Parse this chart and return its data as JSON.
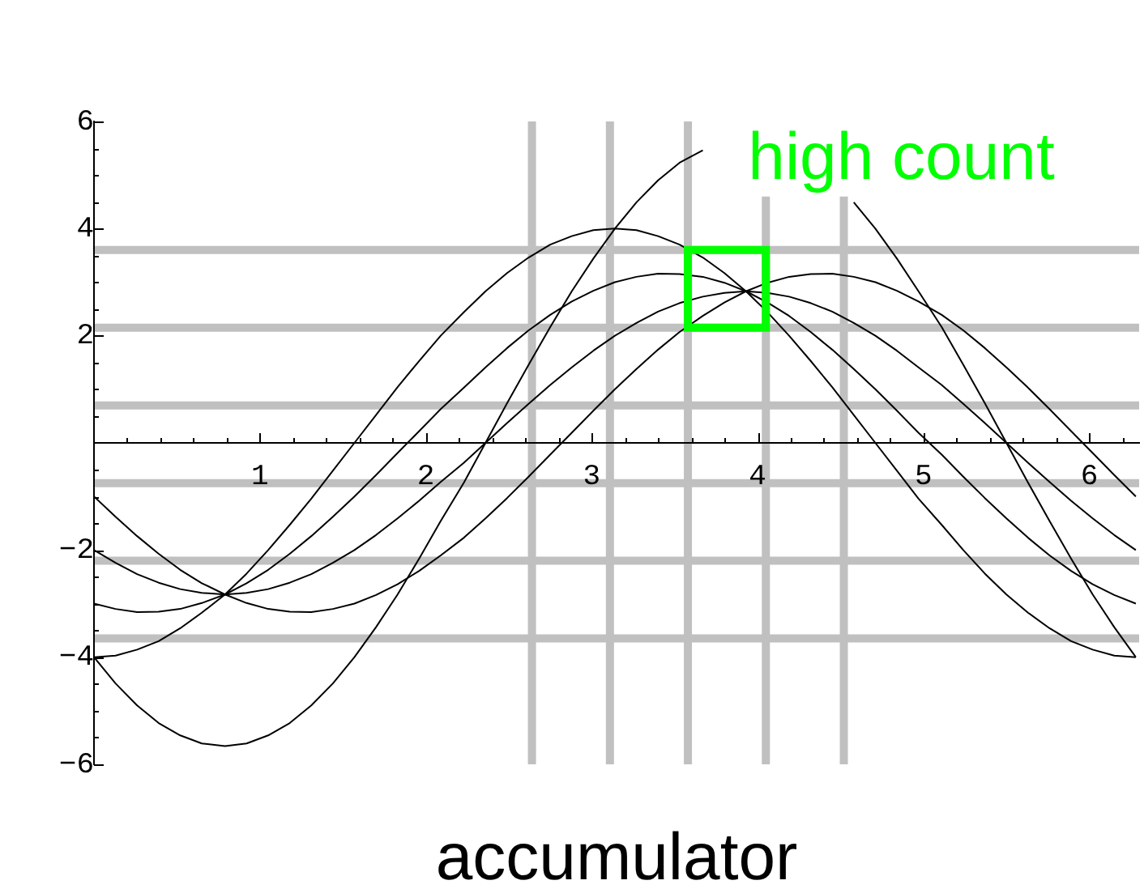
{
  "chart_data": {
    "type": "line",
    "x": [
      0,
      0.13,
      0.26,
      0.39,
      0.52,
      0.65,
      0.79,
      0.92,
      1.05,
      1.18,
      1.31,
      1.44,
      1.57,
      1.7,
      1.83,
      1.96,
      2.09,
      2.23,
      2.36,
      2.49,
      2.62,
      2.75,
      2.88,
      3.01,
      3.14,
      3.27,
      3.4,
      3.53,
      3.67,
      3.8,
      3.93,
      4.06,
      4.19,
      4.32,
      4.45,
      4.58,
      4.71,
      4.84,
      4.97,
      5.11,
      5.24,
      5.37,
      5.5,
      5.63,
      5.76,
      5.89,
      6.02,
      6.15,
      6.28
    ],
    "series": [
      {
        "color": "#000000",
        "values": [
          -1,
          -1.38,
          -1.74,
          -2.07,
          -2.37,
          -2.62,
          -2.83,
          -2.99,
          -3.1,
          -3.15,
          -3.16,
          -3.1,
          -3,
          -2.84,
          -2.64,
          -2.39,
          -2.1,
          -1.77,
          -1.41,
          -1.03,
          -0.63,
          -0.22,
          0.19,
          0.6,
          1,
          1.38,
          1.74,
          2.07,
          2.37,
          2.62,
          2.83,
          2.99,
          3.1,
          3.15,
          3.16,
          3.1,
          3,
          2.84,
          2.64,
          2.39,
          2.1,
          1.77,
          1.41,
          1.03,
          0.63,
          0.22,
          -0.19,
          -0.6,
          -1
        ]
      },
      {
        "color": "#000000",
        "values": [
          -2,
          -2.24,
          -2.45,
          -2.61,
          -2.73,
          -2.8,
          -2.83,
          -2.8,
          -2.73,
          -2.61,
          -2.45,
          -2.24,
          -2,
          -1.72,
          -1.41,
          -1.08,
          -0.73,
          -0.37,
          0,
          0.37,
          0.73,
          1.08,
          1.41,
          1.72,
          2,
          2.24,
          2.45,
          2.61,
          2.73,
          2.8,
          2.83,
          2.8,
          2.73,
          2.61,
          2.45,
          2.24,
          2,
          1.72,
          1.41,
          1.08,
          0.73,
          0.37,
          0,
          -0.37,
          -0.73,
          -1.08,
          -1.41,
          -1.72,
          -2
        ]
      },
      {
        "color": "#000000",
        "values": [
          -3,
          -3.1,
          -3.16,
          -3.15,
          -3.1,
          -2.99,
          -2.83,
          -2.62,
          -2.37,
          -2.07,
          -1.74,
          -1.38,
          -1,
          -0.6,
          -0.19,
          0.22,
          0.63,
          1.03,
          1.41,
          1.77,
          2.1,
          2.39,
          2.64,
          2.84,
          3,
          3.1,
          3.16,
          3.15,
          3.1,
          2.99,
          2.83,
          2.62,
          2.37,
          2.07,
          1.74,
          1.38,
          1,
          0.6,
          0.19,
          -0.22,
          -0.63,
          -1.03,
          -1.41,
          -1.77,
          -2.1,
          -2.39,
          -2.64,
          -2.84,
          -3
        ]
      },
      {
        "color": "#000000",
        "values": [
          -4,
          -3.97,
          -3.86,
          -3.7,
          -3.46,
          -3.17,
          -2.83,
          -2.44,
          -2,
          -1.53,
          -1.04,
          -0.52,
          0,
          0.52,
          1.04,
          1.53,
          2,
          2.44,
          2.83,
          3.17,
          3.46,
          3.7,
          3.86,
          3.97,
          4,
          3.97,
          3.86,
          3.7,
          3.46,
          3.17,
          2.83,
          2.44,
          2,
          1.53,
          1.04,
          0.52,
          0,
          -0.52,
          -1.04,
          -1.53,
          -2,
          -2.44,
          -2.83,
          -3.17,
          -3.46,
          -3.7,
          -3.86,
          -3.97,
          -4
        ]
      },
      {
        "color": "#000000",
        "values": [
          -4,
          -4.49,
          -4.9,
          -5.23,
          -5.46,
          -5.61,
          -5.66,
          -5.61,
          -5.46,
          -5.23,
          -4.9,
          -4.49,
          -4,
          -3.44,
          -2.83,
          -2.16,
          -1.46,
          -0.74,
          0,
          0.74,
          1.46,
          2.16,
          2.83,
          3.44,
          4,
          4.49,
          4.9,
          5.23,
          5.46,
          null,
          null,
          null,
          null,
          null,
          null,
          4.49,
          4,
          3.44,
          2.83,
          2.16,
          1.46,
          0.74,
          0,
          -0.74,
          -1.46,
          -2.16,
          -2.83,
          -3.44,
          -4
        ]
      }
    ],
    "xlim": [
      0,
      6.3
    ],
    "ylim": [
      -6,
      6
    ],
    "xticks": [
      {
        "value": 0.2,
        "label": null
      },
      {
        "value": 0.4,
        "label": null
      },
      {
        "value": 0.6,
        "label": null
      },
      {
        "value": 0.8,
        "label": null
      },
      1,
      {
        "value": 1.2,
        "label": null
      },
      {
        "value": 1.4,
        "label": null
      },
      {
        "value": 1.6,
        "label": null
      },
      {
        "value": 1.8,
        "label": null
      },
      2,
      {
        "value": 2.2,
        "label": null
      },
      {
        "value": 2.4,
        "label": null
      },
      {
        "value": 2.6,
        "label": null
      },
      {
        "value": 2.8,
        "label": null
      },
      3,
      {
        "value": 3.2,
        "label": null
      },
      {
        "value": 3.4,
        "label": null
      },
      {
        "value": 3.6,
        "label": null
      },
      {
        "value": 3.8,
        "label": null
      },
      4,
      {
        "value": 4.2,
        "label": null
      },
      {
        "value": 4.4,
        "label": null
      },
      {
        "value": 4.6,
        "label": null
      },
      {
        "value": 4.8,
        "label": null
      },
      5,
      {
        "value": 5.2,
        "label": null
      },
      {
        "value": 5.4,
        "label": null
      },
      {
        "value": 5.6,
        "label": null
      },
      {
        "value": 5.8,
        "label": null
      },
      6,
      {
        "value": 6.2,
        "label": null
      }
    ],
    "yticks": [
      {
        "value": -6,
        "label": "−6"
      },
      {
        "value": -5.5,
        "label": null
      },
      {
        "value": -5,
        "label": null
      },
      {
        "value": -4.5,
        "label": null
      },
      {
        "value": -4,
        "label": "−4"
      },
      {
        "value": -3.5,
        "label": null
      },
      {
        "value": -3,
        "label": null
      },
      {
        "value": -2.5,
        "label": null
      },
      {
        "value": -2,
        "label": "−2"
      },
      {
        "value": -1.5,
        "label": null
      },
      {
        "value": -1,
        "label": null
      },
      {
        "value": -0.5,
        "label": null
      },
      {
        "value": 0.5,
        "label": null
      },
      {
        "value": 1,
        "label": null
      },
      {
        "value": 1.5,
        "label": null
      },
      2,
      {
        "value": 2.5,
        "label": null
      },
      {
        "value": 3,
        "label": null
      },
      {
        "value": 3.5,
        "label": null
      },
      4,
      {
        "value": 4.5,
        "label": null
      },
      {
        "value": 5,
        "label": null
      },
      {
        "value": 5.5,
        "label": null
      },
      6
    ],
    "ref_lines": [
      {
        "axis": "x",
        "value": 2.64,
        "color": "#c0c0c0"
      },
      {
        "axis": "x",
        "value": 3.11,
        "color": "#c0c0c0"
      },
      {
        "axis": "x",
        "value": 3.58,
        "color": "#c0c0c0"
      },
      {
        "axis": "x",
        "value": 4.05,
        "color": "#c0c0c0"
      },
      {
        "axis": "x",
        "value": 4.52,
        "color": "#c0c0c0"
      },
      {
        "axis": "y",
        "value": 3.6,
        "color": "#c0c0c0"
      },
      {
        "axis": "y",
        "value": 2.15,
        "color": "#c0c0c0"
      },
      {
        "axis": "y",
        "value": 0.7,
        "color": "#c0c0c0"
      },
      {
        "axis": "y",
        "value": -0.75,
        "color": "#c0c0c0"
      },
      {
        "axis": "y",
        "value": -2.2,
        "color": "#c0c0c0"
      },
      {
        "axis": "y",
        "value": -3.65,
        "color": "#c0c0c0"
      }
    ],
    "annotations": [
      {
        "text": "high count",
        "x": 3.93,
        "y": 2.83
      },
      "accumulator"
    ],
    "marker": "none"
  }
}
